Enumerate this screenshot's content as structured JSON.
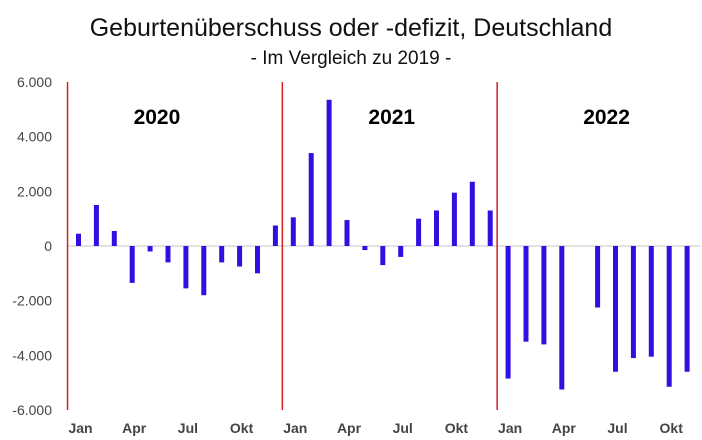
{
  "chart_data": {
    "type": "bar",
    "title": "Geburtenüberschuss oder -defizit, Deutschland",
    "subtitle": "- Im Vergleich zu 2019 -",
    "xlabel": "",
    "ylabel": "",
    "ylim": [
      -6000,
      6000
    ],
    "yticks": [
      6000,
      4000,
      2000,
      0,
      -2000,
      -4000,
      -6000
    ],
    "ytick_labels": [
      "6.000",
      "4.000",
      "2.000",
      "0",
      "-2.000",
      "-4.000",
      "-6.000"
    ],
    "grid": false,
    "legend": "none",
    "year_labels": [
      "2020",
      "2021",
      "2022"
    ],
    "months_per_year": 12,
    "month_tick_labels": [
      "Jan",
      "Apr",
      "Jul",
      "Okt",
      "Jan",
      "Apr",
      "Jul",
      "Okt",
      "Jan",
      "Apr",
      "Jul",
      "Okt"
    ],
    "month_tick_positions": [
      0,
      3,
      6,
      9,
      12,
      15,
      18,
      21,
      24,
      27,
      30,
      33
    ],
    "values": [
      450,
      1500,
      550,
      -1350,
      -200,
      -600,
      -1550,
      -1800,
      -600,
      -750,
      -1000,
      750,
      1050,
      3400,
      5350,
      950,
      -150,
      -700,
      -400,
      1000,
      1300,
      1950,
      2350,
      1300,
      -4850,
      -3500,
      -3600,
      -5250,
      null,
      -2250,
      -4600,
      -4100,
      -4050,
      -5150,
      -4600
    ],
    "colors": {
      "bar": "#3010e0",
      "divider": "#d42020",
      "axis": "#d9d9d9"
    }
  }
}
